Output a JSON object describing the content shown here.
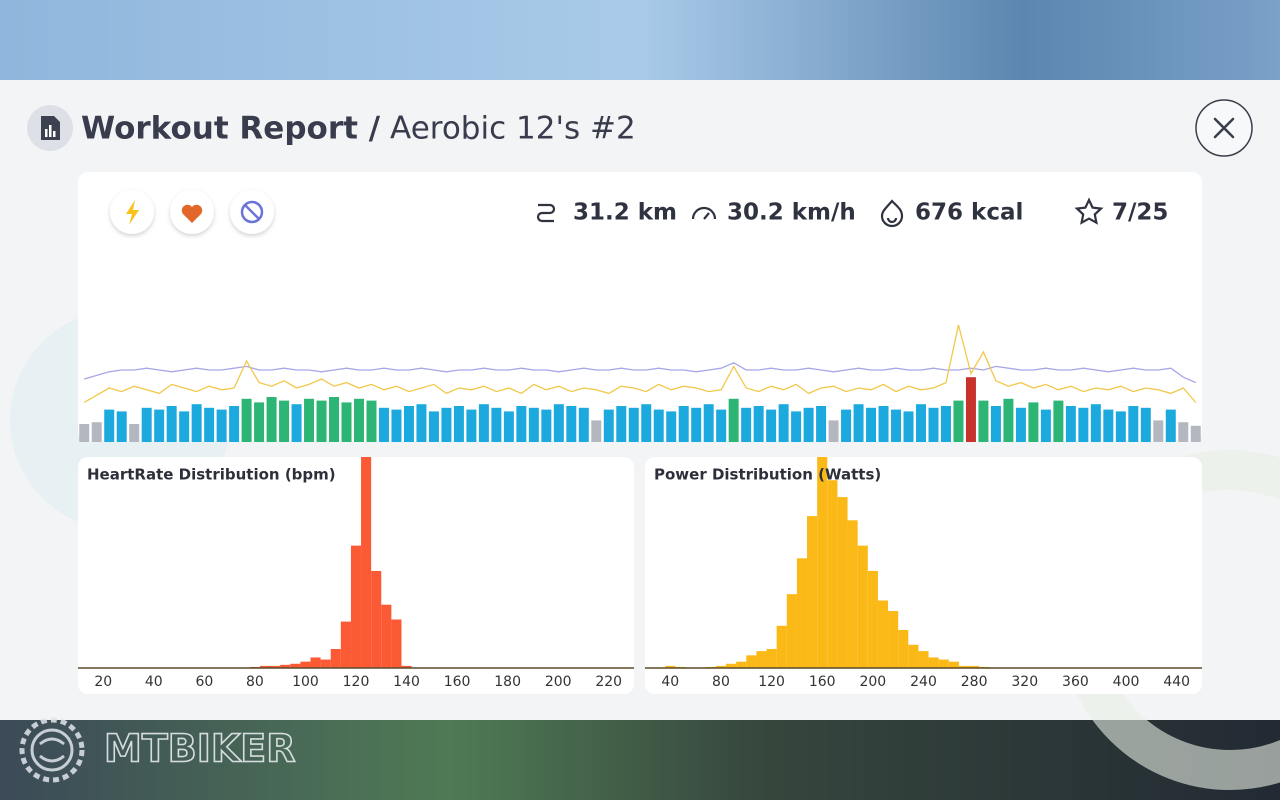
{
  "header": {
    "title": "Workout Report /",
    "subtitle": "Aerobic 12's #2"
  },
  "stats": [
    "31.2 km",
    "30.2 km/h",
    "676 kcal",
    "7/25"
  ],
  "watermark": "MTBIKER",
  "chart_data": [
    {
      "type": "timeline",
      "ylim": [
        0,
        100
      ],
      "values": [
        10,
        11,
        18,
        17,
        10,
        19,
        18,
        20,
        17,
        21,
        19,
        18,
        20,
        24,
        22,
        25,
        23,
        21,
        24,
        23,
        25,
        22,
        24,
        23,
        19,
        18,
        20,
        21,
        17,
        19,
        20,
        18,
        21,
        19,
        17,
        20,
        19,
        18,
        21,
        20,
        19,
        12,
        18,
        20,
        19,
        21,
        18,
        17,
        20,
        19,
        21,
        18,
        24,
        19,
        20,
        18,
        21,
        17,
        19,
        20,
        12,
        18,
        21,
        19,
        20,
        18,
        17,
        21,
        19,
        20,
        23,
        36,
        23,
        20,
        24,
        19,
        22,
        18,
        23,
        20,
        19,
        21,
        18,
        17,
        20,
        19,
        12,
        18,
        11,
        9
      ],
      "zones": [
        {
          "below": 14,
          "color": "#b3b7bf"
        },
        {
          "below": 22,
          "color": "#1ca9de"
        },
        {
          "below": 30,
          "color": "#2cb574"
        },
        {
          "color": "#c8322d"
        }
      ],
      "series": [
        {
          "color": "#a9a6e8",
          "values": [
            35,
            37,
            39,
            40,
            40,
            41,
            40,
            39,
            40,
            41,
            40,
            40,
            41,
            42,
            40,
            40,
            41,
            40,
            40,
            39,
            40,
            41,
            40,
            40,
            41,
            40,
            40,
            41,
            40,
            39,
            40,
            40,
            41,
            40,
            40,
            41,
            40,
            40,
            39,
            40,
            41,
            40,
            40,
            41,
            40,
            40,
            41,
            40,
            40,
            39,
            40,
            41,
            44,
            40,
            40,
            41,
            40,
            40,
            41,
            40,
            39,
            40,
            41,
            40,
            40,
            41,
            40,
            40,
            41,
            40,
            40,
            41,
            40,
            42,
            41,
            40,
            40,
            41,
            40,
            40,
            41,
            40,
            39,
            40,
            41,
            40,
            40,
            41,
            36,
            33
          ]
        },
        {
          "color": "#f1c84b",
          "values": [
            22,
            26,
            30,
            28,
            31,
            29,
            27,
            32,
            30,
            28,
            31,
            29,
            30,
            45,
            33,
            31,
            34,
            30,
            32,
            35,
            31,
            33,
            30,
            32,
            29,
            31,
            28,
            30,
            32,
            27,
            30,
            29,
            31,
            28,
            30,
            27,
            32,
            29,
            31,
            28,
            30,
            29,
            27,
            31,
            30,
            28,
            32,
            29,
            31,
            30,
            28,
            29,
            42,
            30,
            28,
            31,
            29,
            32,
            27,
            30,
            31,
            28,
            30,
            29,
            32,
            28,
            31,
            29,
            30,
            33,
            65,
            38,
            50,
            34,
            31,
            33,
            30,
            32,
            29,
            31,
            28,
            30,
            29,
            31,
            28,
            30,
            29,
            27,
            30,
            22
          ]
        }
      ]
    },
    {
      "type": "histogram",
      "title": "HeartRate Distribution (bpm)",
      "color": "#fc5a35",
      "xlim": [
        10,
        230
      ],
      "ylim": [
        0,
        100
      ],
      "xticks": [
        20,
        40,
        60,
        80,
        100,
        120,
        140,
        160,
        180,
        200,
        220
      ],
      "bins": [
        10,
        14,
        18,
        22,
        26,
        30,
        34,
        38,
        42,
        46,
        50,
        54,
        58,
        62,
        66,
        70,
        74,
        78,
        82,
        86,
        90,
        94,
        98,
        102,
        106,
        110,
        114,
        118,
        122,
        126,
        130,
        134,
        138,
        142,
        146,
        150,
        154,
        158,
        162,
        166,
        170,
        174,
        178,
        182,
        186,
        190,
        194,
        198,
        202,
        206,
        210,
        214,
        218,
        222,
        226,
        230
      ],
      "values": [
        0,
        0,
        0,
        0,
        0,
        0,
        0,
        0,
        0,
        0,
        0,
        0,
        0,
        0,
        0,
        0,
        0,
        0.5,
        1,
        1,
        1.5,
        2,
        3,
        5,
        4,
        9,
        22,
        58,
        100,
        46,
        30,
        23,
        1,
        0,
        0,
        0,
        0,
        0,
        0,
        0,
        0,
        0,
        0,
        0,
        0,
        0,
        0,
        0,
        0,
        0,
        0,
        0,
        0,
        0,
        0
      ]
    },
    {
      "type": "histogram",
      "title": "Power Distribution (Watts)",
      "color": "#fbb917",
      "xlim": [
        20,
        460
      ],
      "ylim": [
        0,
        100
      ],
      "xticks": [
        40,
        80,
        120,
        160,
        200,
        240,
        280,
        320,
        360,
        400,
        440
      ],
      "bins": [
        20,
        28,
        36,
        44,
        52,
        60,
        68,
        76,
        84,
        92,
        100,
        108,
        116,
        124,
        132,
        140,
        148,
        156,
        164,
        172,
        180,
        188,
        196,
        204,
        212,
        220,
        228,
        236,
        244,
        252,
        260,
        268,
        276,
        284,
        292,
        300,
        308,
        316,
        324,
        332,
        340,
        348,
        356,
        364,
        372,
        380,
        388,
        396,
        404,
        412,
        420,
        428,
        436,
        444,
        452,
        460
      ],
      "values": [
        0,
        0,
        1,
        0.5,
        0,
        0,
        0.5,
        1,
        2,
        3,
        6,
        8,
        9,
        20,
        35,
        52,
        72,
        100,
        89,
        81,
        70,
        58,
        46,
        32,
        27,
        18,
        11,
        8,
        5,
        4,
        3,
        1,
        1,
        0.5,
        0,
        0,
        0,
        0,
        0,
        0,
        0,
        0,
        0,
        0,
        0,
        0,
        0,
        0,
        0,
        0,
        0,
        0,
        0,
        0,
        0
      ]
    }
  ]
}
